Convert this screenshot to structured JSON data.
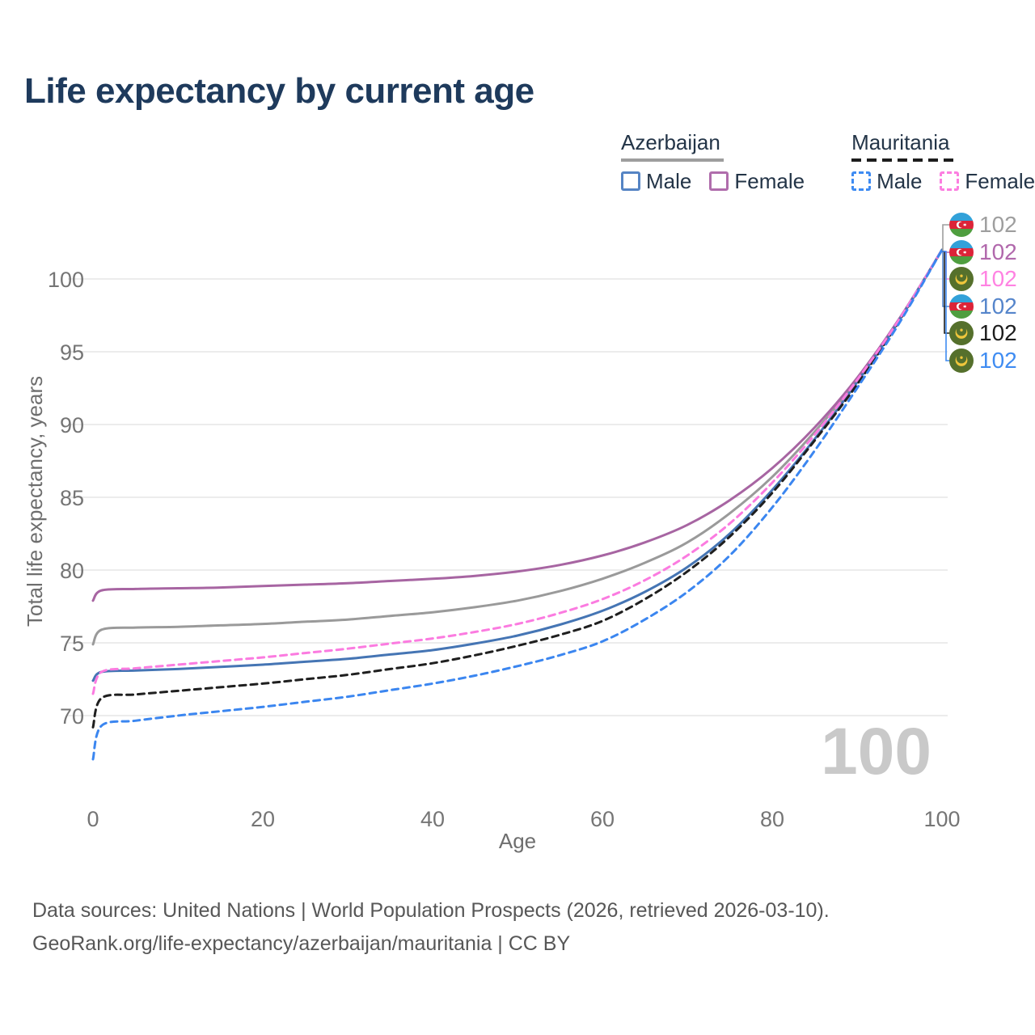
{
  "title": "Life expectancy by current age",
  "legend": {
    "groups": [
      {
        "label": "Azerbaijan",
        "line_style": "solid",
        "underline_color": "#9e9e9e",
        "items": [
          {
            "label": "Male",
            "color": "#5584c4",
            "dashed": false
          },
          {
            "label": "Female",
            "color": "#b06dac",
            "dashed": false
          }
        ]
      },
      {
        "label": "Mauritania",
        "line_style": "dashed",
        "underline_color": "#1d1d1d",
        "items": [
          {
            "label": "Male",
            "color": "#3e8bf2",
            "dashed": true
          },
          {
            "label": "Female",
            "color": "#fc7ee0",
            "dashed": true
          }
        ]
      }
    ]
  },
  "chart_data": {
    "type": "line",
    "title": "Life expectancy by current age",
    "xlabel": "Age",
    "ylabel": "Total life expectancy, years",
    "xlim": [
      0,
      100
    ],
    "ylim": [
      66,
      103
    ],
    "x_ticks": [
      0,
      20,
      40,
      60,
      80,
      100
    ],
    "y_ticks": [
      70,
      75,
      80,
      85,
      90,
      95,
      100
    ],
    "grid": "horizontal-only",
    "legend_position": "top-right",
    "watermark": "100",
    "ages": [
      0,
      1,
      5,
      10,
      15,
      20,
      25,
      30,
      35,
      40,
      45,
      50,
      55,
      60,
      65,
      70,
      75,
      80,
      85,
      90,
      95,
      100
    ],
    "series": [
      {
        "name": "Azerbaijan — Both sexes",
        "country": "Azerbaijan",
        "sex": "all",
        "color": "#9a9a9a",
        "dashed": false,
        "values": [
          74.9,
          75.9,
          76.05,
          76.1,
          76.2,
          76.3,
          76.45,
          76.6,
          76.85,
          77.1,
          77.45,
          77.9,
          78.55,
          79.4,
          80.5,
          81.9,
          83.9,
          86.4,
          89.5,
          93.0,
          97.2,
          102
        ]
      },
      {
        "name": "Azerbaijan — Female",
        "country": "Azerbaijan",
        "sex": "female",
        "color": "#a765a2",
        "dashed": false,
        "values": [
          77.9,
          78.6,
          78.7,
          78.75,
          78.8,
          78.9,
          79.0,
          79.1,
          79.25,
          79.4,
          79.6,
          79.9,
          80.35,
          81.0,
          81.9,
          83.1,
          84.8,
          87.0,
          89.8,
          93.2,
          97.3,
          102
        ]
      },
      {
        "name": "Azerbaijan — Male",
        "country": "Azerbaijan",
        "sex": "male",
        "color": "#4575b4",
        "dashed": false,
        "values": [
          72.4,
          73.0,
          73.1,
          73.2,
          73.35,
          73.5,
          73.7,
          73.9,
          74.2,
          74.5,
          74.95,
          75.5,
          76.25,
          77.2,
          78.5,
          80.2,
          82.5,
          85.5,
          89.0,
          92.9,
          97.2,
          102
        ]
      },
      {
        "name": "Mauritania — Both sexes",
        "country": "Mauritania",
        "sex": "all",
        "color": "#1f1f1f",
        "dashed": true,
        "values": [
          69.2,
          71.2,
          71.45,
          71.7,
          71.95,
          72.2,
          72.5,
          72.8,
          73.2,
          73.6,
          74.15,
          74.8,
          75.55,
          76.5,
          78.0,
          79.9,
          82.3,
          85.3,
          88.9,
          92.75,
          97.15,
          102
        ]
      },
      {
        "name": "Mauritania — Male",
        "country": "Mauritania",
        "sex": "male",
        "color": "#3b86f0",
        "dashed": true,
        "values": [
          67.0,
          69.3,
          69.65,
          70.0,
          70.3,
          70.6,
          70.95,
          71.3,
          71.75,
          72.2,
          72.75,
          73.4,
          74.15,
          75.1,
          76.6,
          78.5,
          81.0,
          84.3,
          88.2,
          92.5,
          97.0,
          102
        ]
      },
      {
        "name": "Mauritania — Female",
        "country": "Mauritania",
        "sex": "female",
        "color": "#fb7be0",
        "dashed": true,
        "values": [
          71.5,
          73.0,
          73.25,
          73.5,
          73.75,
          74.0,
          74.3,
          74.6,
          74.95,
          75.3,
          75.75,
          76.3,
          77.05,
          78.0,
          79.3,
          81.0,
          83.2,
          86.0,
          89.3,
          93.05,
          97.25,
          102
        ]
      }
    ]
  },
  "end_labels": [
    {
      "value": "102",
      "flag": "azerbaijan",
      "series": "Azerbaijan — Both sexes",
      "color": "#9e9e9e"
    },
    {
      "value": "102",
      "flag": "azerbaijan",
      "series": "Azerbaijan — Female",
      "color": "#b168ac"
    },
    {
      "value": "102",
      "flag": "mauritania",
      "series": "Mauritania — Female",
      "color": "#ff82e2"
    },
    {
      "value": "102",
      "flag": "azerbaijan",
      "series": "Azerbaijan — Male",
      "color": "#5585cb"
    },
    {
      "value": "102",
      "flag": "mauritania",
      "series": "Mauritania — Both sexes",
      "color": "#1c1c1c"
    },
    {
      "value": "102",
      "flag": "mauritania",
      "series": "Mauritania — Male",
      "color": "#3f8cf2"
    }
  ],
  "footer": {
    "line1": "Data sources: United Nations | World Population Prospects (2026, retrieved 2026-03-10).",
    "line2": "GeoRank.org/life-expectancy/azerbaijan/mauritania | CC BY"
  }
}
